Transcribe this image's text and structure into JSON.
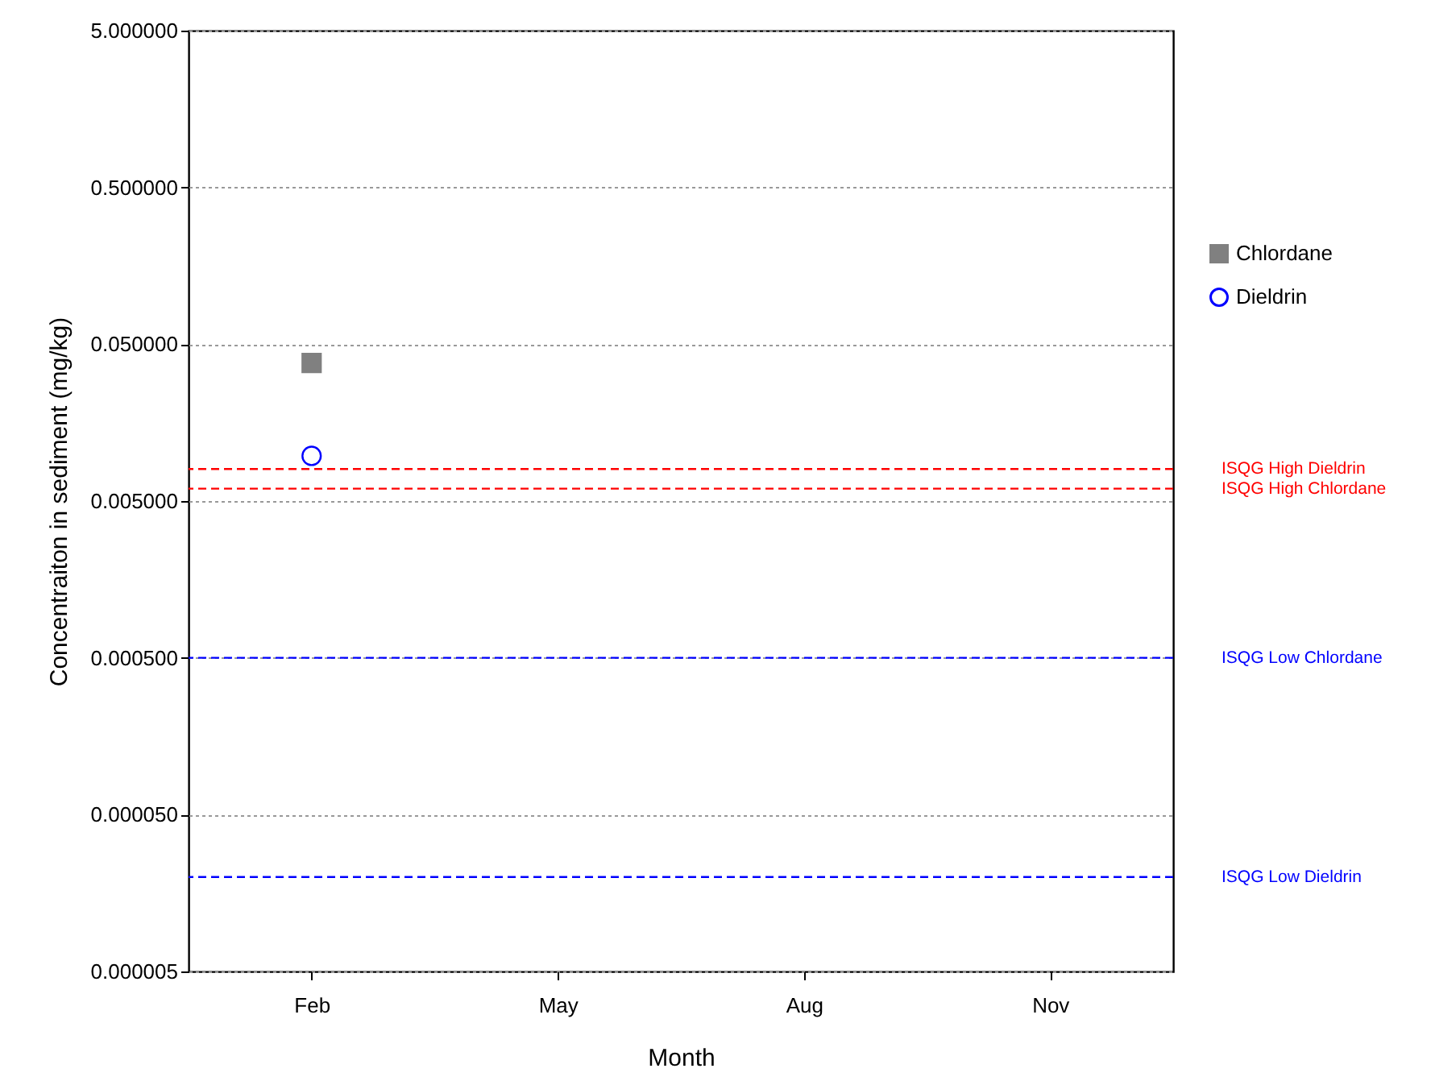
{
  "chart_data": {
    "type": "scatter",
    "xlabel": "Month",
    "ylabel": "Concentraiton in sediment (mg/kg)",
    "categories": [
      "Feb",
      "May",
      "Aug",
      "Nov"
    ],
    "series": [
      {
        "name": "Chlordane",
        "color": "#808080",
        "marker": "square",
        "values": [
          0.038,
          null,
          null,
          null
        ]
      },
      {
        "name": "Dieldrin",
        "color": "#0000ff",
        "marker": "circle",
        "values": [
          0.0097,
          null,
          null,
          null
        ]
      }
    ],
    "log": "y",
    "ylim": [
      5e-06,
      5
    ],
    "yticks": [
      {
        "value": 5e-06,
        "label": "0.000005"
      },
      {
        "value": 5e-05,
        "label": "0.000050"
      },
      {
        "value": 0.0005,
        "label": "0.000500"
      },
      {
        "value": 0.005,
        "label": "0.005000"
      },
      {
        "value": 0.05,
        "label": "0.050000"
      },
      {
        "value": 0.5,
        "label": "0.500000"
      },
      {
        "value": 5,
        "label": "5.000000"
      }
    ],
    "grid": "y",
    "legend": "right",
    "ref_lines": [
      {
        "axis": "y",
        "value": 0.008,
        "label": "ISQG High Dieldrin",
        "color": "#ff0000",
        "line_style": "dashed"
      },
      {
        "axis": "y",
        "value": 0.006,
        "label": "ISQG High Chlordane",
        "color": "#ff0000",
        "line_style": "dashed"
      },
      {
        "axis": "y",
        "value": 0.0005,
        "label": "ISQG Low Chlordane",
        "color": "#0000ff",
        "line_style": "dashed"
      },
      {
        "axis": "y",
        "value": 2e-05,
        "label": "ISQG Low Dieldrin",
        "color": "#0000ff",
        "line_style": "dashed"
      }
    ]
  }
}
